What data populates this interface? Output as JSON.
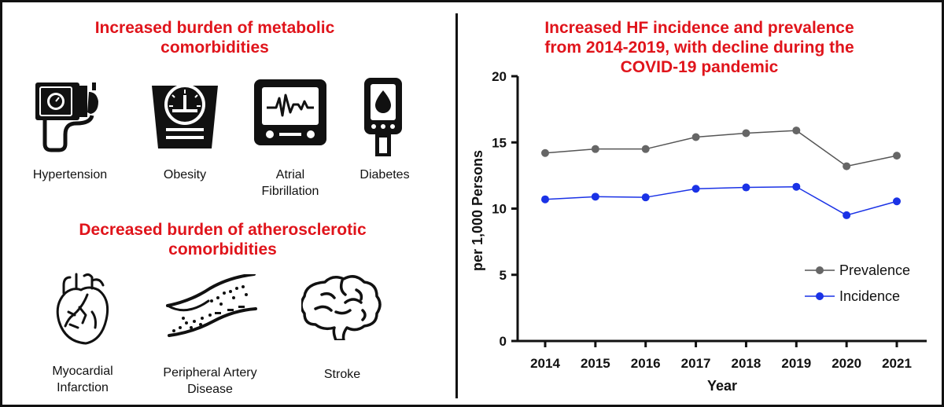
{
  "left_panel": {
    "metabolic_title": "Increased burden of metabolic comorbidities",
    "atherosclerotic_title": "Decreased burden of atherosclerotic comorbidities",
    "metabolic_items": [
      {
        "label": "Hypertension",
        "icon": "blood-pressure-cuff-icon"
      },
      {
        "label": "Obesity",
        "icon": "weight-scale-icon"
      },
      {
        "label": "Atrial Fibrillation",
        "icon": "heart-monitor-icon"
      },
      {
        "label": "Diabetes",
        "icon": "glucose-meter-icon"
      }
    ],
    "atherosclerotic_items": [
      {
        "label": "Myocardial Infarction",
        "icon": "heart-icon"
      },
      {
        "label": "Peripheral Artery Disease",
        "icon": "artery-plaque-icon"
      },
      {
        "label": "Stroke",
        "icon": "brain-icon"
      }
    ]
  },
  "chart_data": {
    "type": "line",
    "title": "Increased HF incidence and prevalence from 2014-2019, with decline during the COVID-19 pandemic",
    "xlabel": "Year",
    "ylabel": "per 1,000 Persons",
    "categories": [
      "2014",
      "2015",
      "2016",
      "2017",
      "2018",
      "2019",
      "2020",
      "2021"
    ],
    "ylim": [
      0,
      20
    ],
    "yticks": [
      0,
      5,
      10,
      15,
      20
    ],
    "grid": false,
    "legend_position": "bottom-right",
    "series": [
      {
        "name": "Prevalence",
        "color": "#555555",
        "marker_color": "#666666",
        "values": [
          14.2,
          14.5,
          14.5,
          15.4,
          15.7,
          15.9,
          13.2,
          14.0
        ]
      },
      {
        "name": "Incidence",
        "color": "#1a32e6",
        "marker_color": "#1a32e6",
        "values": [
          10.7,
          10.9,
          10.85,
          11.5,
          11.6,
          11.65,
          9.5,
          10.55
        ]
      }
    ],
    "title_color": "#e0141b"
  }
}
